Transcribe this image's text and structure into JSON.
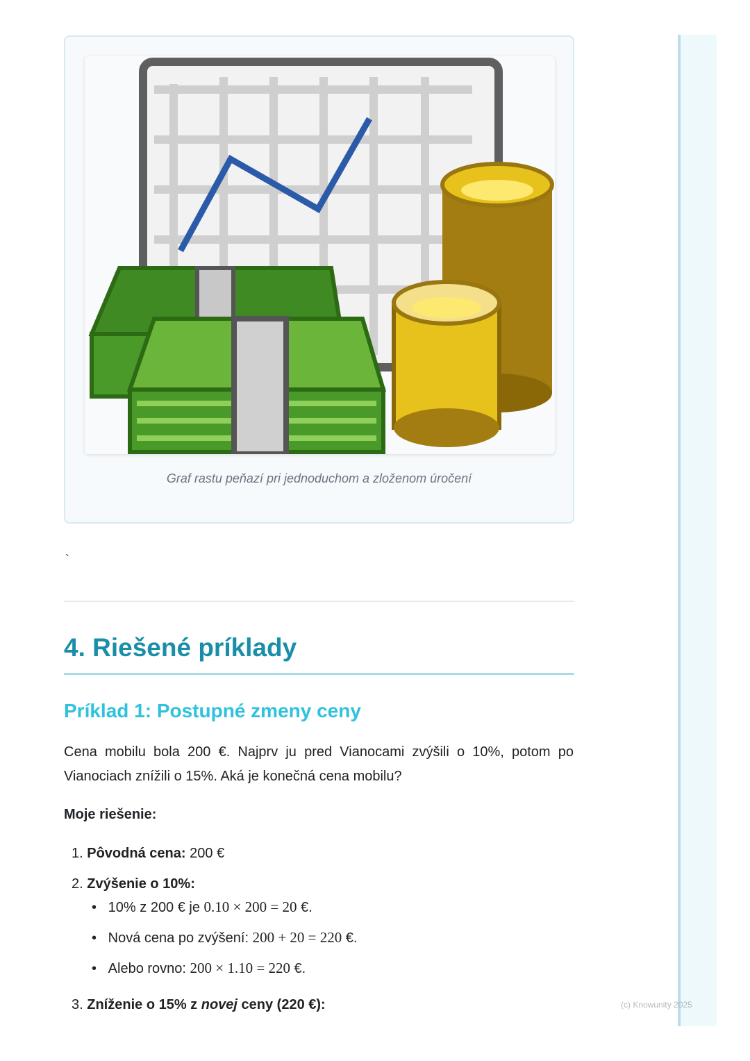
{
  "figure": {
    "caption": "Graf rastu peňazí pri jednoduchom a zloženom úročení",
    "colors": {
      "cash": "#4a9a2a",
      "coins": "#e8c21c",
      "line": "#2b5aa8"
    }
  },
  "stray_char": "`",
  "section": {
    "title": "4. Riešené príklady"
  },
  "example": {
    "title": "Príklad 1: Postupné zmeny ceny",
    "problem": "Cena mobilu bola 200 €. Najprv ju pred Vianocami zvýšili o 10%, potom po Vianociach znížili o 15%. Aká je konečná cena mobilu?",
    "solution_label": "Moje riešenie:",
    "steps": [
      {
        "num": "1.",
        "label": "Pôvodná cena:",
        "text": " 200 €"
      },
      {
        "num": "2.",
        "label": "Zvýšenie o 10%:",
        "bullets": [
          {
            "text": "10% z 200 € je ",
            "math": "0.10 × 200 = 20",
            "tail": " €."
          },
          {
            "text": "Nová cena po zvýšení: ",
            "math": "200 + 20 = 220",
            "tail": " €."
          },
          {
            "text": "Alebo rovno: ",
            "math": "200 × 1.10 = 220",
            "tail": " €."
          }
        ]
      },
      {
        "num": "3.",
        "label_a": "Zníženie o 15% z ",
        "label_em": "novej",
        "label_b": " ceny (220 €):"
      }
    ]
  },
  "footer": {
    "copyright": "(c) Knowunity 2025"
  }
}
